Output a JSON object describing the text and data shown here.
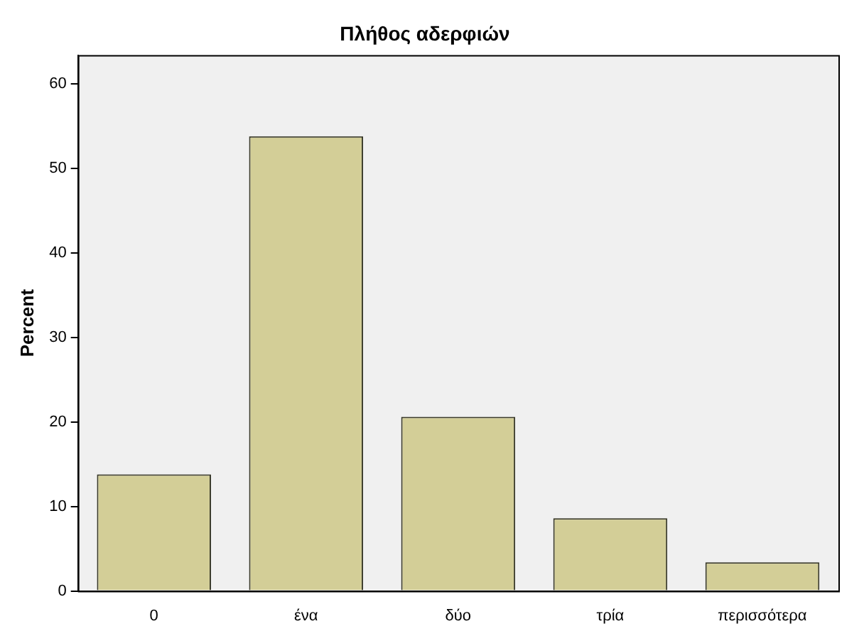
{
  "chart_data": {
    "type": "bar",
    "title": "Πλήθος αδερφιών",
    "ylabel": "Percent",
    "categories": [
      "0",
      "ένα",
      "δύο",
      "τρία",
      "περισσότερα"
    ],
    "values": [
      13.8,
      53.8,
      20.6,
      8.6,
      3.4
    ],
    "color": "#d3ce97",
    "ylim": [
      0,
      63.4
    ],
    "yticks": [
      0,
      10,
      20,
      30,
      40,
      50,
      60
    ],
    "grid": false,
    "legend": false
  }
}
